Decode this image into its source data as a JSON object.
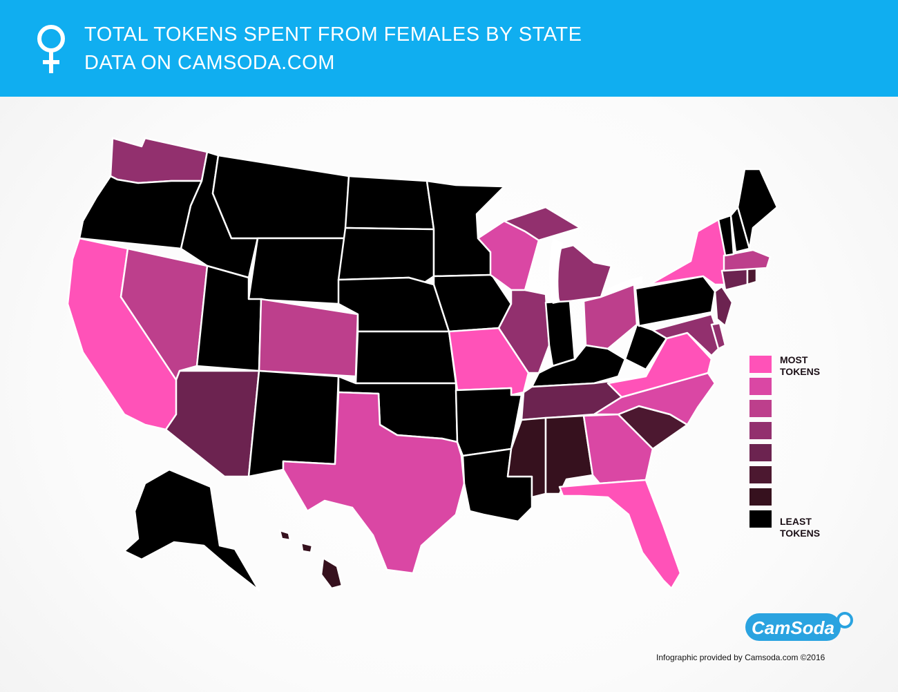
{
  "header": {
    "title": "TOTAL TOKENS SPENT FROM FEMALES BY STATE",
    "subtitle": "DATA ON CAMSODA.COM",
    "background": "#10aef0",
    "icon": "female-symbol-icon"
  },
  "scale": {
    "t0": "#000000",
    "t1": "#36111e",
    "t2": "#4c1830",
    "t3": "#6c2350",
    "t4": "#92306e",
    "t5": "#bd3f8c",
    "t6": "#da47a4",
    "t7": "#ff52b8"
  },
  "legend": {
    "top_label_line1": "MOST",
    "top_label_line2": "TOKENS",
    "bottom_label_line1": "LEAST",
    "bottom_label_line2": "TOKENS",
    "steps": [
      "t7",
      "t6",
      "t5",
      "t4",
      "t3",
      "t2",
      "t1",
      "t0"
    ]
  },
  "states": {
    "CA": "t7",
    "FL": "t7",
    "MO": "t7",
    "VA": "t7",
    "NY": "t7",
    "TX": "t6",
    "GA": "t6",
    "NC": "t6",
    "WI": "t6",
    "CO": "t5",
    "NV": "t5",
    "OH": "t5",
    "MA": "t5",
    "WA": "t4",
    "MI": "t4",
    "IL": "t4",
    "MD": "t4",
    "DE": "t4",
    "AZ": "t3",
    "TN": "t3",
    "CT": "t3",
    "NJ": "t3",
    "SC": "t2",
    "RI": "t2",
    "MS": "t1",
    "AL": "t1",
    "HI": "t1",
    "OR": "t0",
    "ID": "t0",
    "MT": "t0",
    "WY": "t0",
    "UT": "t0",
    "NM": "t0",
    "ND": "t0",
    "SD": "t0",
    "NE": "t0",
    "KS": "t0",
    "OK": "t0",
    "MN": "t0",
    "IA": "t0",
    "AR": "t0",
    "LA": "t0",
    "IN": "t0",
    "KY": "t0",
    "WV": "t0",
    "PA": "t0",
    "VT": "t0",
    "NH": "t0",
    "ME": "t0",
    "AK": "t0"
  },
  "logo_text": "CamSoda",
  "credit": "Infographic provided by Camsoda.com ©2016"
}
